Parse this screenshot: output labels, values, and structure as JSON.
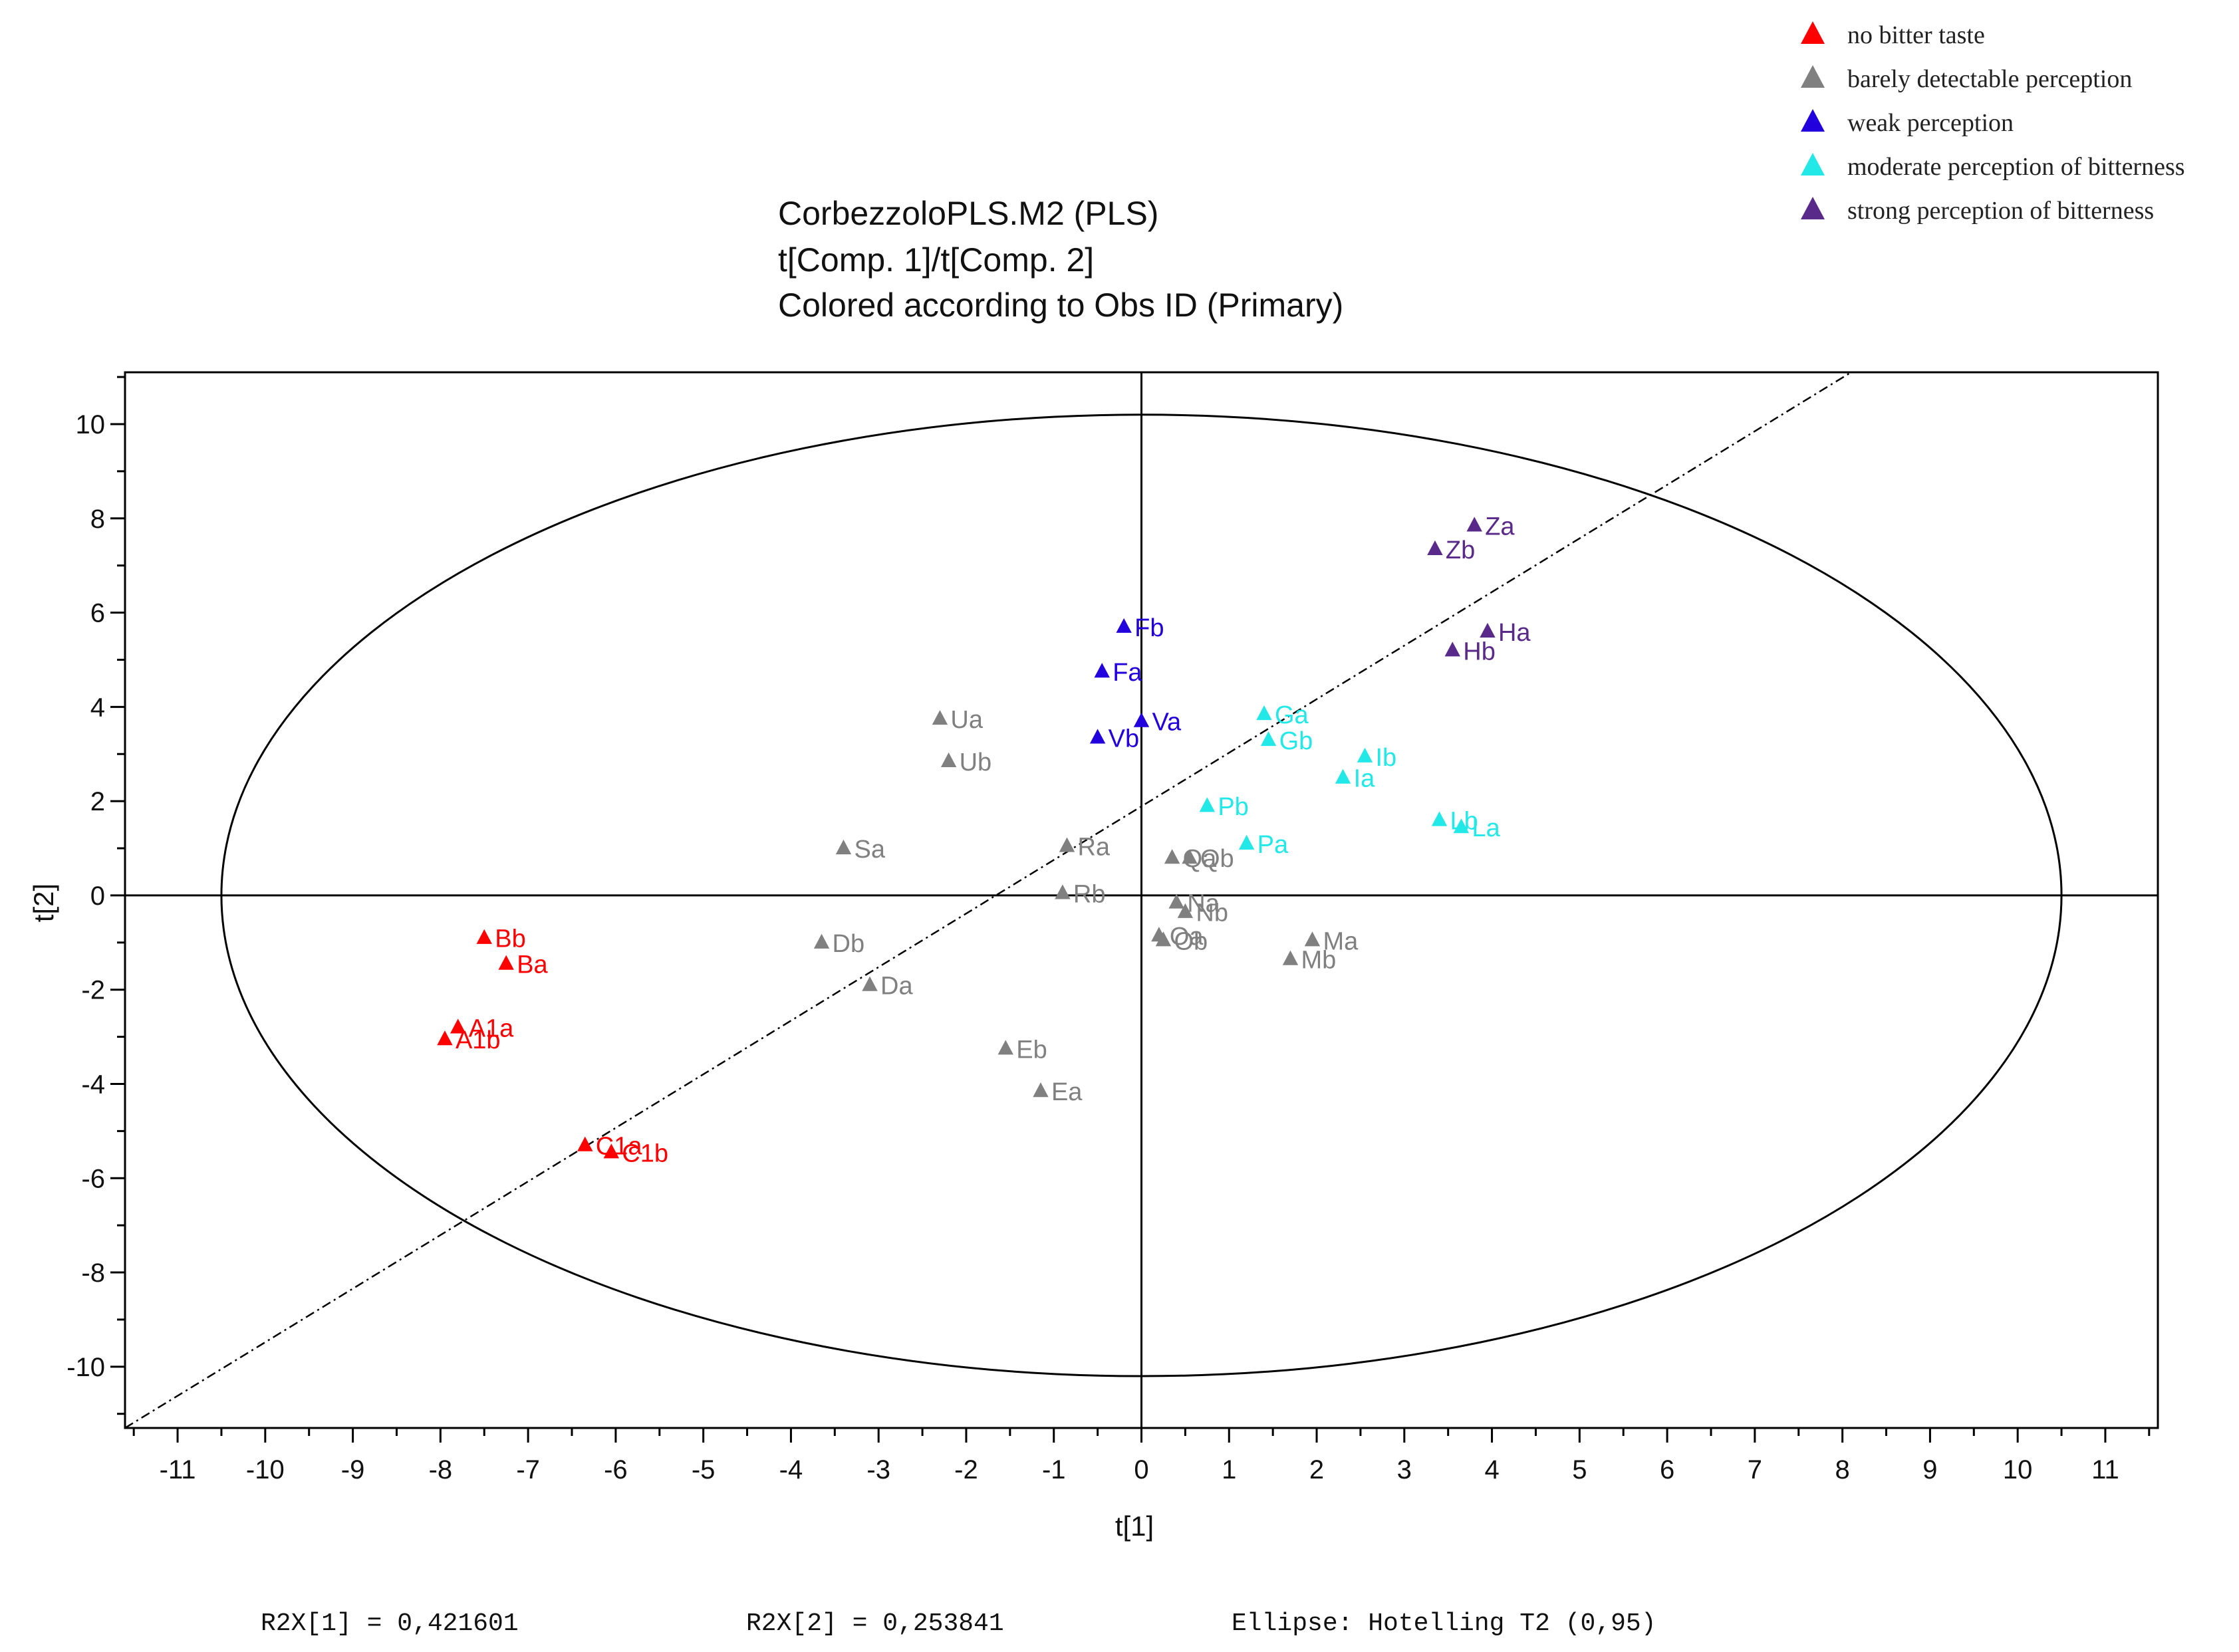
{
  "chart_data": {
    "type": "scatter",
    "title": "CorbezzoloPLS.M2 (PLS)",
    "subtitle": "t[Comp. 1]/t[Comp. 2]",
    "subtitle2": "Colored according to Obs ID (Primary)",
    "xlabel": "t[1]",
    "ylabel": "t[2]",
    "xlim": [
      -11.6,
      11.6
    ],
    "ylim": [
      -11.3,
      11.1
    ],
    "x_ticks": [
      -11,
      -10,
      -9,
      -8,
      -7,
      -6,
      -5,
      -4,
      -3,
      -2,
      -1,
      0,
      1,
      2,
      3,
      4,
      5,
      6,
      7,
      8,
      9,
      10,
      11
    ],
    "y_ticks": [
      -10,
      -8,
      -6,
      -4,
      -2,
      0,
      2,
      4,
      6,
      8,
      10
    ],
    "ellipse": {
      "label": "Ellipse: Hotelling T2 (0,95)",
      "rx": 10.5,
      "ry": 10.2
    },
    "reference_line": {
      "style": "dash-dot",
      "from": [
        -11.6,
        -11.3
      ],
      "to": [
        8.1,
        11.1
      ]
    },
    "legend": [
      {
        "name": "no bitter taste",
        "color": "#ff0000"
      },
      {
        "name": "barely detectable perception",
        "color": "#808080"
      },
      {
        "name": "weak perception",
        "color": "#2200dd"
      },
      {
        "name": "moderate perception of bitterness",
        "color": "#22e8e8"
      },
      {
        "name": "strong perception of bitterness",
        "color": "#5a2a8a"
      }
    ],
    "series": [
      {
        "name": "no bitter taste",
        "color": "#ff0000",
        "points": [
          {
            "label": "Bb",
            "x": -7.5,
            "y": -0.9
          },
          {
            "label": "Ba",
            "x": -7.25,
            "y": -1.45
          },
          {
            "label": "A1a",
            "x": -7.8,
            "y": -2.8
          },
          {
            "label": "A1b",
            "x": -7.95,
            "y": -3.05
          },
          {
            "label": "C1a",
            "x": -6.35,
            "y": -5.3
          },
          {
            "label": "C1b",
            "x": -6.05,
            "y": -5.45
          }
        ]
      },
      {
        "name": "barely detectable perception",
        "color": "#808080",
        "points": [
          {
            "label": "Ua",
            "x": -2.3,
            "y": 3.75
          },
          {
            "label": "Ub",
            "x": -2.2,
            "y": 2.85
          },
          {
            "label": "Sa",
            "x": -3.4,
            "y": 1.0
          },
          {
            "label": "Ra",
            "x": -0.85,
            "y": 1.05
          },
          {
            "label": "Rb",
            "x": -0.9,
            "y": 0.05
          },
          {
            "label": "Db",
            "x": -3.65,
            "y": -1.0
          },
          {
            "label": "Da",
            "x": -3.1,
            "y": -1.9
          },
          {
            "label": "Eb",
            "x": -1.55,
            "y": -3.25
          },
          {
            "label": "Ea",
            "x": -1.15,
            "y": -4.15
          },
          {
            "label": "Qa",
            "x": 0.35,
            "y": 0.8
          },
          {
            "label": "Qb",
            "x": 0.55,
            "y": 0.8
          },
          {
            "label": "Na",
            "x": 0.4,
            "y": -0.15
          },
          {
            "label": "Nb",
            "x": 0.5,
            "y": -0.35
          },
          {
            "label": "Oa",
            "x": 0.2,
            "y": -0.85
          },
          {
            "label": "Ob",
            "x": 0.25,
            "y": -0.95
          },
          {
            "label": "Ma",
            "x": 1.95,
            "y": -0.95
          },
          {
            "label": "Mb",
            "x": 1.7,
            "y": -1.35
          }
        ]
      },
      {
        "name": "weak perception",
        "color": "#2200dd",
        "points": [
          {
            "label": "Fb",
            "x": -0.2,
            "y": 5.7
          },
          {
            "label": "Fa",
            "x": -0.45,
            "y": 4.75
          },
          {
            "label": "Va",
            "x": 0.0,
            "y": 3.7
          },
          {
            "label": "Vb",
            "x": -0.5,
            "y": 3.35
          }
        ]
      },
      {
        "name": "moderate perception of bitterness",
        "color": "#22e8e8",
        "points": [
          {
            "label": "Ga",
            "x": 1.4,
            "y": 3.85
          },
          {
            "label": "Gb",
            "x": 1.45,
            "y": 3.3
          },
          {
            "label": "Ib",
            "x": 2.55,
            "y": 2.95
          },
          {
            "label": "Ia",
            "x": 2.3,
            "y": 2.5
          },
          {
            "label": "Pb",
            "x": 0.75,
            "y": 1.9
          },
          {
            "label": "Pa",
            "x": 1.2,
            "y": 1.1
          },
          {
            "label": "Lb",
            "x": 3.4,
            "y": 1.6
          },
          {
            "label": "La",
            "x": 3.65,
            "y": 1.45
          }
        ]
      },
      {
        "name": "strong perception of bitterness",
        "color": "#5a2a8a",
        "points": [
          {
            "label": "Za",
            "x": 3.8,
            "y": 7.85
          },
          {
            "label": "Zb",
            "x": 3.35,
            "y": 7.35
          },
          {
            "label": "Ha",
            "x": 3.95,
            "y": 5.6
          },
          {
            "label": "Hb",
            "x": 3.55,
            "y": 5.2
          }
        ]
      }
    ],
    "footer": {
      "r2x1": "R2X[1] = 0,421601",
      "r2x2": "R2X[2] = 0,253841",
      "ellipse_note": "Ellipse: Hotelling T2 (0,95)"
    }
  }
}
